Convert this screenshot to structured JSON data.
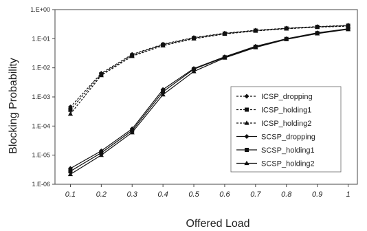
{
  "chart_data": {
    "type": "line",
    "xlabel": "Offered Load",
    "ylabel": "Blocking Probability",
    "x": [
      0.1,
      0.2,
      0.3,
      0.4,
      0.5,
      0.6,
      0.7,
      0.8,
      0.9,
      1
    ],
    "x_tick_labels": [
      "0.1",
      "0.2",
      "0.3",
      "0.4",
      "0.5",
      "0.6",
      "0.7",
      "0.8",
      "0.9",
      "1"
    ],
    "y_scale": "log",
    "ylim": [
      1e-06,
      1
    ],
    "y_tick_values": [
      1,
      0.1,
      0.01,
      0.001,
      0.0001,
      1e-05,
      1e-06
    ],
    "y_tick_labels": [
      "1.E+00",
      "1.E-01",
      "1.E-02",
      "1.E-03",
      "1.E-04",
      "1.E-05",
      "1.E-06"
    ],
    "grid": false,
    "legend_position": "right",
    "series": [
      {
        "name": "ICSP_dropping",
        "style": "dashed",
        "marker": "diamond",
        "values": [
          0.00045,
          0.0065,
          0.029,
          0.065,
          0.11,
          0.155,
          0.195,
          0.23,
          0.26,
          0.29
        ]
      },
      {
        "name": "ICSP_holding1",
        "style": "dashed",
        "marker": "square",
        "values": [
          0.00036,
          0.006,
          0.027,
          0.062,
          0.105,
          0.15,
          0.19,
          0.225,
          0.255,
          0.28
        ]
      },
      {
        "name": "ICSP_holding2",
        "style": "dashed",
        "marker": "triangle",
        "values": [
          0.00026,
          0.0055,
          0.025,
          0.058,
          0.1,
          0.145,
          0.185,
          0.22,
          0.25,
          0.27
        ]
      },
      {
        "name": "SCSP_dropping",
        "style": "solid",
        "marker": "diamond",
        "values": [
          3.5e-06,
          1.4e-05,
          8e-05,
          0.0018,
          0.0095,
          0.024,
          0.055,
          0.1,
          0.16,
          0.22
        ]
      },
      {
        "name": "SCSP_holding1",
        "style": "solid",
        "marker": "square",
        "values": [
          2.8e-06,
          1.2e-05,
          7e-05,
          0.0015,
          0.009,
          0.023,
          0.053,
          0.098,
          0.155,
          0.215
        ]
      },
      {
        "name": "SCSP_holding2",
        "style": "solid",
        "marker": "triangle",
        "values": [
          2.2e-06,
          1e-05,
          6e-05,
          0.0012,
          0.0075,
          0.022,
          0.05,
          0.095,
          0.15,
          0.21
        ]
      }
    ]
  }
}
